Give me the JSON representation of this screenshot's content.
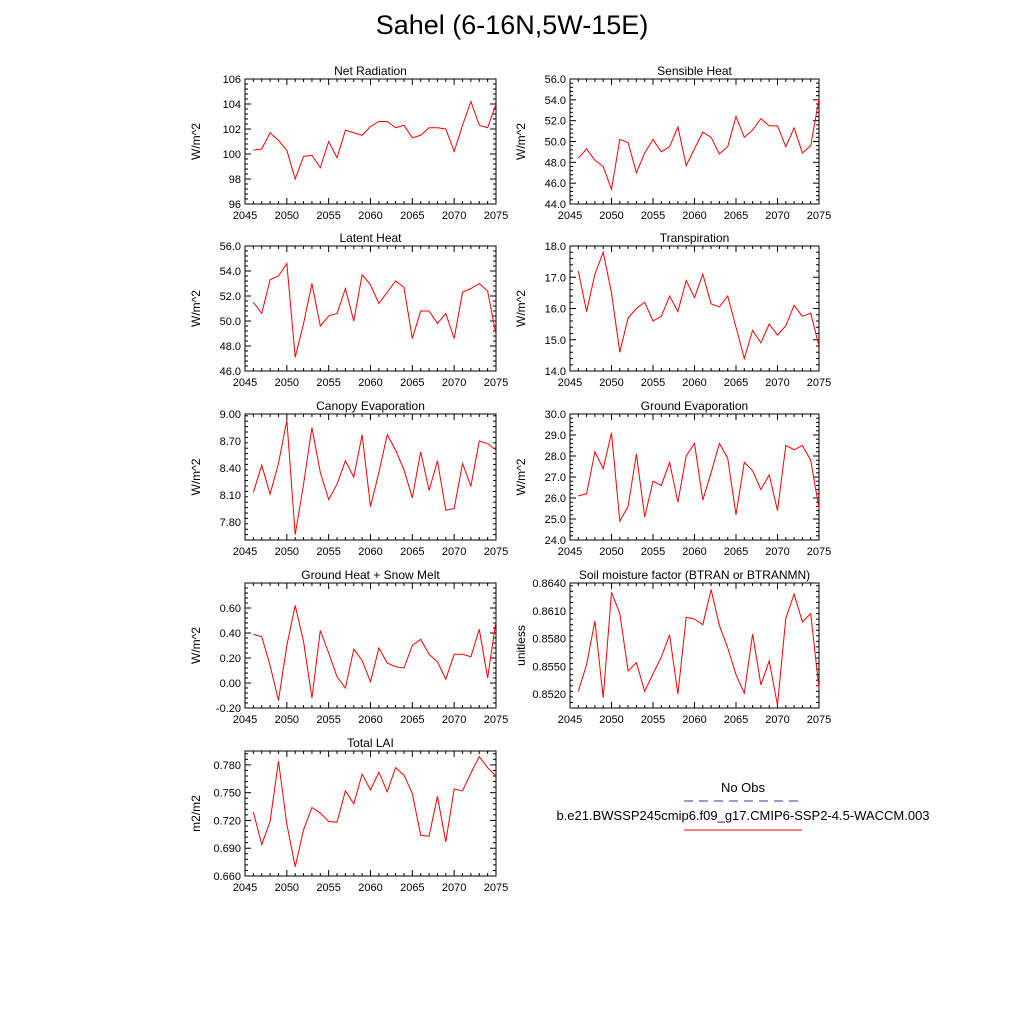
{
  "figure_title": "Sahel (6-16N,5W-15E)",
  "series_color": "#ff0000",
  "obs_color": "#3a3aa0",
  "legend": {
    "obs_label": "No Obs",
    "model_label": "b.e21.BWSSP245cmip6.f09_g17.CMIP6-SSP2-4.5-WACCM.003"
  },
  "chart_data": [
    {
      "type": "line",
      "title": "Net Radiation",
      "ylabel": "W/m^2",
      "xlim": [
        2045,
        2075
      ],
      "ylim": [
        96,
        106
      ],
      "xticks": [
        2045,
        2050,
        2055,
        2060,
        2065,
        2070,
        2075
      ],
      "xtick_labels": [
        "2045",
        "2050",
        "2055",
        "2060",
        "2065",
        "2070",
        "2075"
      ],
      "yticks": [
        96,
        98,
        100,
        102,
        104,
        106
      ],
      "ytick_labels": [
        "96",
        "98",
        "100",
        "102",
        "104",
        "106"
      ],
      "x": [
        2046,
        2047,
        2048,
        2049,
        2050,
        2051,
        2052,
        2053,
        2054,
        2055,
        2056,
        2057,
        2058,
        2059,
        2060,
        2061,
        2062,
        2063,
        2064,
        2065,
        2066,
        2067,
        2068,
        2069,
        2070,
        2071,
        2072,
        2073,
        2074,
        2075
      ],
      "values": [
        100.3,
        100.4,
        101.7,
        101.1,
        100.3,
        98.0,
        99.8,
        99.9,
        98.9,
        101.0,
        99.7,
        101.9,
        101.7,
        101.5,
        102.2,
        102.6,
        102.6,
        102.1,
        102.3,
        101.3,
        101.5,
        102.1,
        102.1,
        102.0,
        100.2,
        102.3,
        104.2,
        102.3,
        102.1,
        104.0
      ]
    },
    {
      "type": "line",
      "title": "Sensible Heat",
      "ylabel": "W/m^2",
      "xlim": [
        2045,
        2075
      ],
      "ylim": [
        44,
        56
      ],
      "xticks": [
        2045,
        2050,
        2055,
        2060,
        2065,
        2070,
        2075
      ],
      "xtick_labels": [
        "2045",
        "2050",
        "2055",
        "2060",
        "2065",
        "2070",
        "2075"
      ],
      "yticks": [
        44,
        46,
        48,
        50,
        52,
        54,
        56
      ],
      "ytick_labels": [
        "44.0",
        "46.0",
        "48.0",
        "50.0",
        "52.0",
        "54.0",
        "56.0"
      ],
      "x": [
        2046,
        2047,
        2048,
        2049,
        2050,
        2051,
        2052,
        2053,
        2054,
        2055,
        2056,
        2057,
        2058,
        2059,
        2060,
        2061,
        2062,
        2063,
        2064,
        2065,
        2066,
        2067,
        2068,
        2069,
        2070,
        2071,
        2072,
        2073,
        2074,
        2075
      ],
      "values": [
        48.4,
        49.3,
        48.2,
        47.6,
        45.4,
        50.2,
        49.9,
        47.0,
        48.9,
        50.2,
        49.0,
        49.5,
        51.4,
        47.7,
        49.3,
        50.9,
        50.4,
        48.8,
        49.5,
        52.4,
        50.4,
        51.1,
        52.2,
        51.5,
        51.5,
        49.5,
        51.3,
        48.9,
        49.6,
        54.1
      ]
    },
    {
      "type": "line",
      "title": "Latent Heat",
      "ylabel": "W/m^2",
      "xlim": [
        2045,
        2075
      ],
      "ylim": [
        46,
        56
      ],
      "xticks": [
        2045,
        2050,
        2055,
        2060,
        2065,
        2070,
        2075
      ],
      "xtick_labels": [
        "2045",
        "2050",
        "2055",
        "2060",
        "2065",
        "2070",
        "2075"
      ],
      "yticks": [
        46,
        48,
        50,
        52,
        54,
        56
      ],
      "ytick_labels": [
        "46.0",
        "48.0",
        "50.0",
        "52.0",
        "54.0",
        "56.0"
      ],
      "x": [
        2046,
        2047,
        2048,
        2049,
        2050,
        2051,
        2052,
        2053,
        2054,
        2055,
        2056,
        2057,
        2058,
        2059,
        2060,
        2061,
        2062,
        2063,
        2064,
        2065,
        2066,
        2067,
        2068,
        2069,
        2070,
        2071,
        2072,
        2073,
        2074,
        2075
      ],
      "values": [
        51.5,
        50.6,
        53.3,
        53.6,
        54.6,
        47.1,
        49.8,
        53.0,
        49.6,
        50.4,
        50.6,
        52.6,
        50.0,
        53.7,
        52.9,
        51.4,
        52.3,
        53.2,
        52.7,
        48.6,
        50.8,
        50.8,
        49.8,
        50.6,
        48.6,
        52.3,
        52.6,
        53.0,
        52.4,
        48.9
      ]
    },
    {
      "type": "line",
      "title": "Transpiration",
      "ylabel": "W/m^2",
      "xlim": [
        2045,
        2075
      ],
      "ylim": [
        14,
        18
      ],
      "xticks": [
        2045,
        2050,
        2055,
        2060,
        2065,
        2070,
        2075
      ],
      "xtick_labels": [
        "2045",
        "2050",
        "2055",
        "2060",
        "2065",
        "2070",
        "2075"
      ],
      "yticks": [
        14,
        15,
        16,
        17,
        18
      ],
      "ytick_labels": [
        "14.0",
        "15.0",
        "16.0",
        "17.0",
        "18.0"
      ],
      "x": [
        2046,
        2047,
        2048,
        2049,
        2050,
        2051,
        2052,
        2053,
        2054,
        2055,
        2056,
        2057,
        2058,
        2059,
        2060,
        2061,
        2062,
        2063,
        2064,
        2065,
        2066,
        2067,
        2068,
        2069,
        2070,
        2071,
        2072,
        2073,
        2074,
        2075
      ],
      "values": [
        17.2,
        15.9,
        17.1,
        17.8,
        16.5,
        14.6,
        15.7,
        16.0,
        16.2,
        15.6,
        15.75,
        16.4,
        15.9,
        16.9,
        16.35,
        17.1,
        16.15,
        16.05,
        16.4,
        15.4,
        14.4,
        15.3,
        14.9,
        15.5,
        15.15,
        15.45,
        16.1,
        15.75,
        15.85,
        14.8
      ]
    },
    {
      "type": "line",
      "title": "Canopy Evaporation",
      "ylabel": "W/m^2",
      "xlim": [
        2045,
        2075
      ],
      "ylim": [
        7.6,
        9.0
      ],
      "xticks": [
        2045,
        2050,
        2055,
        2060,
        2065,
        2070,
        2075
      ],
      "xtick_labels": [
        "2045",
        "2050",
        "2055",
        "2060",
        "2065",
        "2070",
        "2075"
      ],
      "yticks": [
        7.8,
        8.1,
        8.4,
        8.7,
        9.0
      ],
      "ytick_labels": [
        "7.80",
        "8.10",
        "8.40",
        "8.70",
        "9.00"
      ],
      "x": [
        2046,
        2047,
        2048,
        2049,
        2050,
        2051,
        2052,
        2053,
        2054,
        2055,
        2056,
        2057,
        2058,
        2059,
        2060,
        2061,
        2062,
        2063,
        2064,
        2065,
        2066,
        2067,
        2068,
        2069,
        2070,
        2071,
        2072,
        2073,
        2074,
        2075
      ],
      "values": [
        8.13,
        8.43,
        8.11,
        8.45,
        8.93,
        7.66,
        8.22,
        8.85,
        8.35,
        8.05,
        8.22,
        8.48,
        8.3,
        8.77,
        7.97,
        8.35,
        8.77,
        8.6,
        8.38,
        8.07,
        8.58,
        8.15,
        8.48,
        7.93,
        7.95,
        8.45,
        8.2,
        8.7,
        8.67,
        8.6
      ]
    },
    {
      "type": "line",
      "title": "Ground Evaporation",
      "ylabel": "W/m^2",
      "xlim": [
        2045,
        2075
      ],
      "ylim": [
        24,
        30
      ],
      "xticks": [
        2045,
        2050,
        2055,
        2060,
        2065,
        2070,
        2075
      ],
      "xtick_labels": [
        "2045",
        "2050",
        "2055",
        "2060",
        "2065",
        "2070",
        "2075"
      ],
      "yticks": [
        24,
        25,
        26,
        27,
        28,
        29,
        30
      ],
      "ytick_labels": [
        "24.0",
        "25.0",
        "26.0",
        "27.0",
        "28.0",
        "29.0",
        "30.0"
      ],
      "x": [
        2046,
        2047,
        2048,
        2049,
        2050,
        2051,
        2052,
        2053,
        2054,
        2055,
        2056,
        2057,
        2058,
        2059,
        2060,
        2061,
        2062,
        2063,
        2064,
        2065,
        2066,
        2067,
        2068,
        2069,
        2070,
        2071,
        2072,
        2073,
        2074,
        2075
      ],
      "values": [
        26.1,
        26.2,
        28.2,
        27.4,
        29.1,
        24.9,
        25.6,
        28.1,
        25.1,
        26.8,
        26.6,
        27.7,
        25.8,
        28.0,
        28.6,
        25.9,
        27.2,
        28.6,
        27.9,
        25.2,
        27.7,
        27.3,
        26.4,
        27.1,
        25.4,
        28.5,
        28.3,
        28.5,
        27.8,
        25.5
      ]
    },
    {
      "type": "line",
      "title": "Ground Heat + Snow Melt",
      "ylabel": "W/m^2",
      "xlim": [
        2045,
        2075
      ],
      "ylim": [
        -0.2,
        0.8
      ],
      "xticks": [
        2045,
        2050,
        2055,
        2060,
        2065,
        2070,
        2075
      ],
      "xtick_labels": [
        "2045",
        "2050",
        "2055",
        "2060",
        "2065",
        "2070",
        "2075"
      ],
      "yticks": [
        -0.2,
        0.0,
        0.2,
        0.4,
        0.6
      ],
      "ytick_labels": [
        "-0.20",
        "0.00",
        "0.20",
        "0.40",
        "0.60"
      ],
      "x": [
        2046,
        2047,
        2048,
        2049,
        2050,
        2051,
        2052,
        2053,
        2054,
        2055,
        2056,
        2057,
        2058,
        2059,
        2060,
        2061,
        2062,
        2063,
        2064,
        2065,
        2066,
        2067,
        2068,
        2069,
        2070,
        2071,
        2072,
        2073,
        2074,
        2075
      ],
      "values": [
        0.39,
        0.37,
        0.14,
        -0.14,
        0.3,
        0.62,
        0.33,
        -0.12,
        0.42,
        0.24,
        0.05,
        -0.04,
        0.27,
        0.18,
        0.01,
        0.28,
        0.16,
        0.13,
        0.12,
        0.3,
        0.35,
        0.23,
        0.17,
        0.03,
        0.23,
        0.23,
        0.21,
        0.43,
        0.04,
        0.5
      ]
    },
    {
      "type": "line",
      "title": "Soil moisture factor (BTRAN or BTRANMN)",
      "ylabel": "unitless",
      "xlim": [
        2045,
        2075
      ],
      "ylim": [
        0.8505,
        0.864
      ],
      "xticks": [
        2045,
        2050,
        2055,
        2060,
        2065,
        2070,
        2075
      ],
      "xtick_labels": [
        "2045",
        "2050",
        "2055",
        "2060",
        "2065",
        "2070",
        "2075"
      ],
      "yticks": [
        0.852,
        0.855,
        0.858,
        0.861,
        0.864
      ],
      "ytick_labels": [
        "0.8520",
        "0.8550",
        "0.8580",
        "0.8610",
        "0.8640"
      ],
      "x": [
        2046,
        2047,
        2048,
        2049,
        2050,
        2051,
        2052,
        2053,
        2054,
        2055,
        2056,
        2057,
        2058,
        2059,
        2060,
        2061,
        2062,
        2063,
        2064,
        2065,
        2066,
        2067,
        2068,
        2069,
        2070,
        2071,
        2072,
        2073,
        2074,
        2075
      ],
      "values": [
        0.8523,
        0.8552,
        0.8599,
        0.8516,
        0.863,
        0.8607,
        0.8545,
        0.8554,
        0.8523,
        0.8542,
        0.856,
        0.8584,
        0.852,
        0.8603,
        0.8601,
        0.8595,
        0.8633,
        0.8594,
        0.857,
        0.8541,
        0.8521,
        0.8585,
        0.853,
        0.8556,
        0.8508,
        0.8602,
        0.8628,
        0.8598,
        0.8607,
        0.8526
      ]
    },
    {
      "type": "line",
      "title": "Total LAI",
      "ylabel": "m2/m2",
      "xlim": [
        2045,
        2075
      ],
      "ylim": [
        0.66,
        0.795
      ],
      "xticks": [
        2045,
        2050,
        2055,
        2060,
        2065,
        2070,
        2075
      ],
      "xtick_labels": [
        "2045",
        "2050",
        "2055",
        "2060",
        "2065",
        "2070",
        "2075"
      ],
      "yticks": [
        0.66,
        0.69,
        0.72,
        0.75,
        0.78
      ],
      "ytick_labels": [
        "0.660",
        "0.690",
        "0.720",
        "0.750",
        "0.780"
      ],
      "x": [
        2046,
        2047,
        2048,
        2049,
        2050,
        2051,
        2052,
        2053,
        2054,
        2055,
        2056,
        2057,
        2058,
        2059,
        2060,
        2061,
        2062,
        2063,
        2064,
        2065,
        2066,
        2067,
        2068,
        2069,
        2070,
        2071,
        2072,
        2073,
        2074,
        2075
      ],
      "values": [
        0.729,
        0.694,
        0.719,
        0.784,
        0.716,
        0.67,
        0.71,
        0.734,
        0.728,
        0.719,
        0.718,
        0.752,
        0.738,
        0.77,
        0.753,
        0.772,
        0.751,
        0.777,
        0.769,
        0.749,
        0.704,
        0.703,
        0.746,
        0.697,
        0.754,
        0.752,
        0.771,
        0.789,
        0.777,
        0.768
      ]
    }
  ]
}
